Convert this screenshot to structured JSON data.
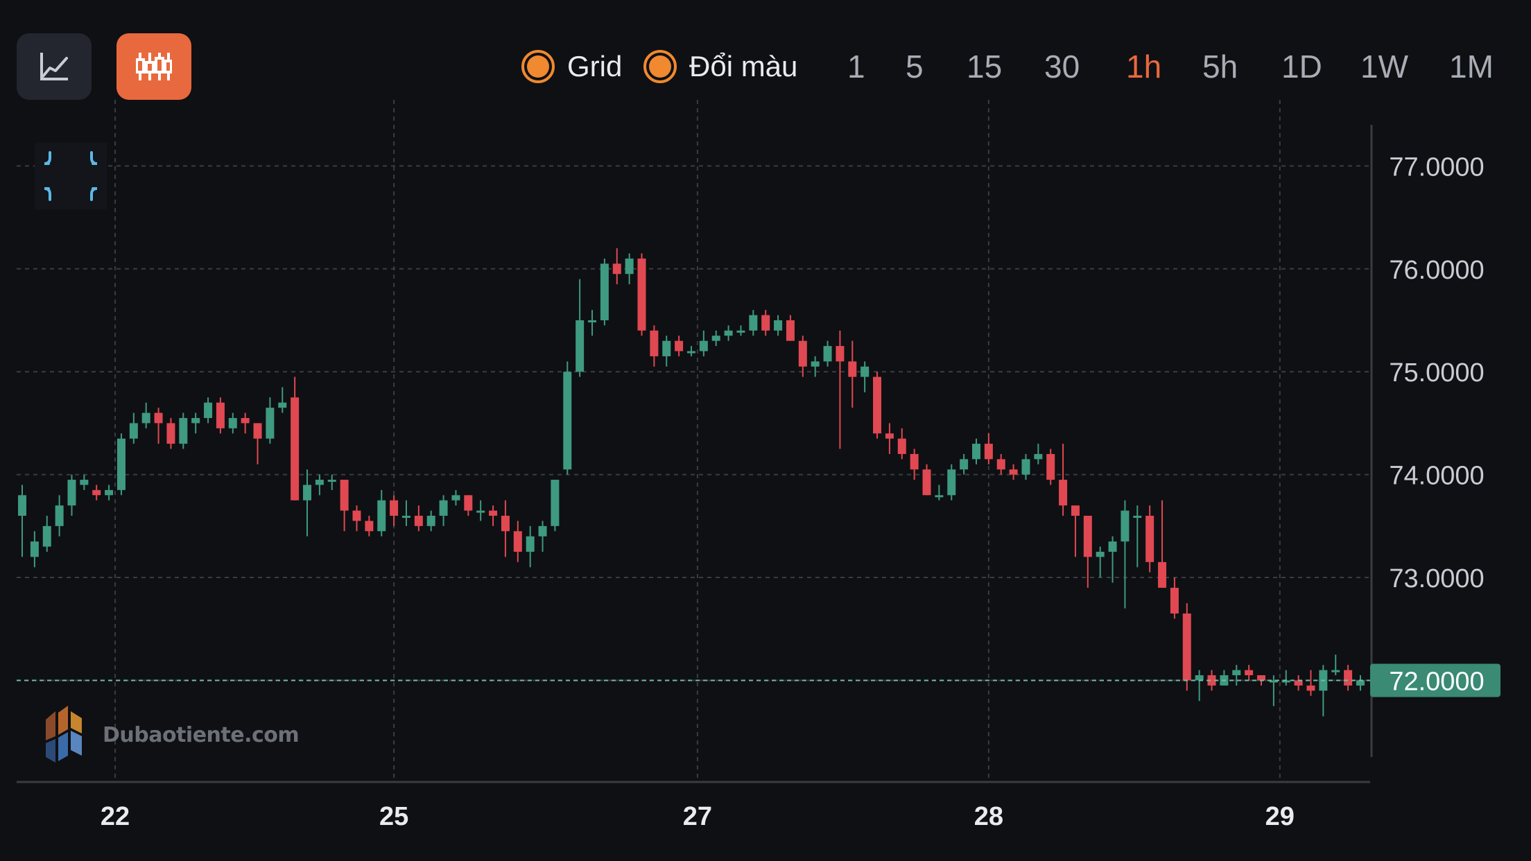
{
  "toolbar": {
    "chart_type_buttons": [
      {
        "icon": "line-chart-icon",
        "active": false
      },
      {
        "icon": "candlestick-icon",
        "active": true
      }
    ],
    "options": [
      {
        "label": "Grid",
        "checked": true
      },
      {
        "label": "Đổi màu",
        "checked": true
      }
    ],
    "timeframes": [
      "1",
      "5",
      "15",
      "30",
      "1h",
      "5h",
      "1D",
      "1W",
      "1M"
    ],
    "active_timeframe": "1h"
  },
  "collapse_icon": "collapse-arrows-icon",
  "watermark": {
    "text": "Dubaotiente.com",
    "icon": "dubaotiente-logo-icon"
  },
  "colors": {
    "background": "#0f1013",
    "up": "#3e9a80",
    "down": "#e04852",
    "accent": "#e8693e",
    "price_label_bg": "#3a8a74",
    "grid": "#3a3c42"
  },
  "chart_data": {
    "type": "candlestick",
    "grid": true,
    "x_tick_labels": [
      "22",
      "25",
      "27",
      "28",
      "29"
    ],
    "y_tick_labels": [
      "77.0000",
      "76.0000",
      "75.0000",
      "74.0000",
      "73.0000",
      "72.0000"
    ],
    "ylim": [
      71.08,
      77.4
    ],
    "current_price": "72.0000",
    "x_ticks": [
      {
        "label": "22",
        "index": 7.5
      },
      {
        "label": "25",
        "index": 30
      },
      {
        "label": "27",
        "index": 54.5
      },
      {
        "label": "28",
        "index": 78
      },
      {
        "label": "29",
        "index": 101.5
      }
    ],
    "y_ticks": [
      77,
      76,
      75,
      74,
      73,
      72
    ],
    "ohlc": [
      [
        73.6,
        73.8,
        73.9,
        73.2
      ],
      [
        73.2,
        73.35,
        73.45,
        73.1
      ],
      [
        73.3,
        73.5,
        73.6,
        73.25
      ],
      [
        73.5,
        73.7,
        73.8,
        73.4
      ],
      [
        73.7,
        73.95,
        74.0,
        73.6
      ],
      [
        73.9,
        73.95,
        74.0,
        73.85
      ],
      [
        73.85,
        73.8,
        73.9,
        73.75
      ],
      [
        73.8,
        73.85,
        73.9,
        73.75
      ],
      [
        73.85,
        74.35,
        74.4,
        73.8
      ],
      [
        74.35,
        74.5,
        74.6,
        74.3
      ],
      [
        74.5,
        74.6,
        74.7,
        74.45
      ],
      [
        74.6,
        74.5,
        74.65,
        74.3
      ],
      [
        74.5,
        74.3,
        74.55,
        74.25
      ],
      [
        74.3,
        74.55,
        74.6,
        74.25
      ],
      [
        74.5,
        74.55,
        74.6,
        74.4
      ],
      [
        74.55,
        74.7,
        74.75,
        74.5
      ],
      [
        74.7,
        74.45,
        74.75,
        74.4
      ],
      [
        74.45,
        74.55,
        74.6,
        74.4
      ],
      [
        74.55,
        74.5,
        74.6,
        74.4
      ],
      [
        74.5,
        74.35,
        74.5,
        74.1
      ],
      [
        74.35,
        74.65,
        74.75,
        74.3
      ],
      [
        74.65,
        74.7,
        74.85,
        74.6
      ],
      [
        74.75,
        73.75,
        74.95,
        73.75
      ],
      [
        73.75,
        73.9,
        74.05,
        73.4
      ],
      [
        73.9,
        73.95,
        74.0,
        73.8
      ],
      [
        73.95,
        73.95,
        74.0,
        73.85
      ],
      [
        73.95,
        73.65,
        73.95,
        73.45
      ],
      [
        73.65,
        73.55,
        73.7,
        73.45
      ],
      [
        73.55,
        73.45,
        73.6,
        73.4
      ],
      [
        73.45,
        73.75,
        73.85,
        73.4
      ],
      [
        73.75,
        73.6,
        73.8,
        73.5
      ],
      [
        73.6,
        73.6,
        73.75,
        73.5
      ],
      [
        73.6,
        73.5,
        73.7,
        73.45
      ],
      [
        73.5,
        73.6,
        73.65,
        73.45
      ],
      [
        73.6,
        73.75,
        73.8,
        73.5
      ],
      [
        73.75,
        73.8,
        73.85,
        73.7
      ],
      [
        73.8,
        73.65,
        73.8,
        73.6
      ],
      [
        73.65,
        73.65,
        73.75,
        73.55
      ],
      [
        73.65,
        73.6,
        73.7,
        73.5
      ],
      [
        73.6,
        73.45,
        73.75,
        73.2
      ],
      [
        73.45,
        73.25,
        73.55,
        73.15
      ],
      [
        73.25,
        73.4,
        73.5,
        73.1
      ],
      [
        73.4,
        73.5,
        73.55,
        73.25
      ],
      [
        73.5,
        73.95,
        73.95,
        73.45
      ],
      [
        74.05,
        75.0,
        75.1,
        74.0
      ],
      [
        75.0,
        75.5,
        75.9,
        74.95
      ],
      [
        75.5,
        75.5,
        75.6,
        75.35
      ],
      [
        75.5,
        76.05,
        76.1,
        75.45
      ],
      [
        76.05,
        75.95,
        76.2,
        75.85
      ],
      [
        75.95,
        76.1,
        76.15,
        75.85
      ],
      [
        76.1,
        75.4,
        76.15,
        75.35
      ],
      [
        75.4,
        75.15,
        75.45,
        75.05
      ],
      [
        75.15,
        75.3,
        75.35,
        75.05
      ],
      [
        75.3,
        75.2,
        75.35,
        75.15
      ],
      [
        75.2,
        75.2,
        75.25,
        75.15
      ],
      [
        75.2,
        75.3,
        75.4,
        75.15
      ],
      [
        75.3,
        75.35,
        75.4,
        75.25
      ],
      [
        75.35,
        75.4,
        75.45,
        75.3
      ],
      [
        75.4,
        75.4,
        75.45,
        75.35
      ],
      [
        75.4,
        75.55,
        75.6,
        75.35
      ],
      [
        75.55,
        75.4,
        75.6,
        75.35
      ],
      [
        75.4,
        75.5,
        75.55,
        75.35
      ],
      [
        75.5,
        75.3,
        75.55,
        75.3
      ],
      [
        75.3,
        75.05,
        75.35,
        74.95
      ],
      [
        75.05,
        75.1,
        75.15,
        74.95
      ],
      [
        75.1,
        75.25,
        75.3,
        75.05
      ],
      [
        75.25,
        75.1,
        75.4,
        74.25
      ],
      [
        75.1,
        74.95,
        75.3,
        74.65
      ],
      [
        74.95,
        75.05,
        75.1,
        74.8
      ],
      [
        74.95,
        74.4,
        75.0,
        74.35
      ],
      [
        74.4,
        74.35,
        74.5,
        74.2
      ],
      [
        74.35,
        74.2,
        74.45,
        74.15
      ],
      [
        74.2,
        74.05,
        74.25,
        73.95
      ],
      [
        74.05,
        73.8,
        74.1,
        73.8
      ],
      [
        73.8,
        73.8,
        73.9,
        73.75
      ],
      [
        73.8,
        74.05,
        74.1,
        73.75
      ],
      [
        74.05,
        74.15,
        74.2,
        74.0
      ],
      [
        74.15,
        74.3,
        74.35,
        74.1
      ],
      [
        74.3,
        74.15,
        74.4,
        74.1
      ],
      [
        74.15,
        74.05,
        74.2,
        74.0
      ],
      [
        74.05,
        74.0,
        74.1,
        73.95
      ],
      [
        74.0,
        74.15,
        74.2,
        73.95
      ],
      [
        74.15,
        74.2,
        74.3,
        74.1
      ],
      [
        74.2,
        73.95,
        74.25,
        73.9
      ],
      [
        73.95,
        73.7,
        74.3,
        73.6
      ],
      [
        73.7,
        73.6,
        73.7,
        73.2
      ],
      [
        73.6,
        73.2,
        73.6,
        72.9
      ],
      [
        73.2,
        73.25,
        73.3,
        73.0
      ],
      [
        73.25,
        73.35,
        73.4,
        72.95
      ],
      [
        73.35,
        73.65,
        73.75,
        72.7
      ],
      [
        73.6,
        73.6,
        73.7,
        73.1
      ],
      [
        73.6,
        73.15,
        73.7,
        73.05
      ],
      [
        73.15,
        72.9,
        73.75,
        72.9
      ],
      [
        72.9,
        72.65,
        73.0,
        72.6
      ],
      [
        72.65,
        72.0,
        72.75,
        71.9
      ],
      [
        72.0,
        72.05,
        72.1,
        71.8
      ],
      [
        72.05,
        71.95,
        72.1,
        71.9
      ],
      [
        71.95,
        72.05,
        72.1,
        71.95
      ],
      [
        72.05,
        72.1,
        72.15,
        71.95
      ],
      [
        72.1,
        72.05,
        72.15,
        72.0
      ],
      [
        72.05,
        72.0,
        72.05,
        71.95
      ],
      [
        72.0,
        72.0,
        72.05,
        71.75
      ],
      [
        72.0,
        72.0,
        72.1,
        71.95
      ],
      [
        72.0,
        71.95,
        72.05,
        71.9
      ],
      [
        71.95,
        71.9,
        72.1,
        71.85
      ],
      [
        71.9,
        72.1,
        72.15,
        71.65
      ],
      [
        72.1,
        72.1,
        72.25,
        72.05
      ],
      [
        72.1,
        71.95,
        72.15,
        71.9
      ],
      [
        71.95,
        72.0,
        72.05,
        71.9
      ]
    ]
  }
}
